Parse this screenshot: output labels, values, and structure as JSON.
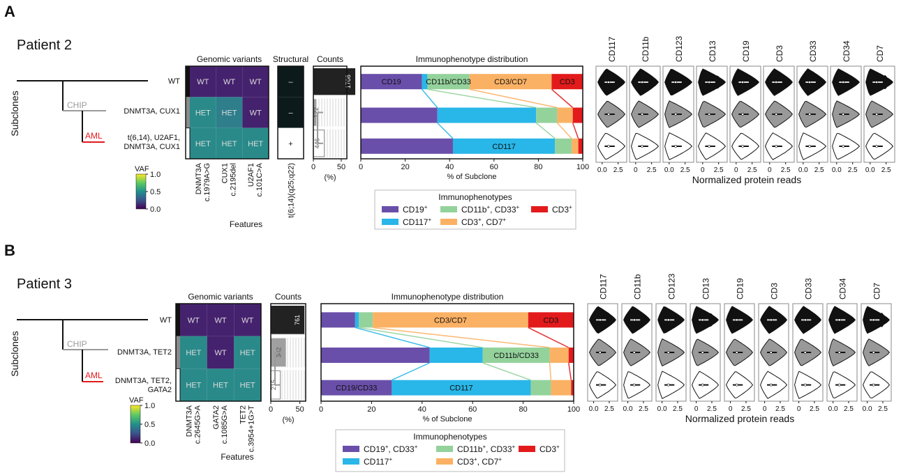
{
  "panels": [
    {
      "letter": "A",
      "patient": "Patient 2",
      "subclones_label": "Subclones",
      "tree": {
        "chip": "CHIP",
        "aml": "AML",
        "chip_color": "#9a9a9a",
        "aml_color": "#e31a1c"
      },
      "rows": [
        "WT",
        "DNMT3A, CUX1",
        "t(6,14), U2AF1,|DNMT3A, CUX1"
      ],
      "genomic": {
        "title": "Genomic variants",
        "columns": [
          "DNMT3A|c.1979A>G",
          "CUX1|c.2195del",
          "U2AF1|c.101C>A"
        ],
        "cells": [
          [
            "WT",
            "WT",
            "WT"
          ],
          [
            "HET",
            "HET",
            "WT"
          ],
          [
            "HET",
            "HET",
            "HET"
          ]
        ],
        "features_label": "Features"
      },
      "structural": {
        "title": "Structural",
        "cells": [
          "–",
          "–",
          "+"
        ],
        "column": "t(6;14)(q25;q22)"
      },
      "counts": {
        "title": "Counts",
        "values": [
          1708,
          122,
          446
        ],
        "ticks": [
          "0",
          "50"
        ],
        "xlabel": "(%)"
      },
      "immuno": {
        "title": "Immunophenotype distribution",
        "xlabel": "% of Subclone",
        "ticks": [
          "0",
          "20",
          "40",
          "60",
          "80",
          "100"
        ],
        "bars": [
          [
            27.5,
            2.5,
            19,
            37,
            14
          ],
          [
            34.5,
            44.5,
            9.5,
            7,
            4.5
          ],
          [
            41.5,
            46,
            7.5,
            3,
            2
          ]
        ],
        "labels": [
          [
            {
              "cat": 0,
              "text": "CD19"
            },
            {
              "cat": 2,
              "text": "CD11b/CD33"
            },
            {
              "cat": 3,
              "text": "CD3/CD7"
            },
            {
              "cat": 4,
              "text": "CD3"
            }
          ],
          [],
          [
            {
              "cat": 1,
              "text": "CD117"
            }
          ]
        ]
      },
      "violins": {
        "groups": [
          [
            "CD117",
            "CD11b"
          ],
          [
            "CD123",
            "CD13",
            "CD19",
            "CD3",
            "CD33",
            "CD34",
            "CD7"
          ]
        ],
        "tick_rows": [
          [
            "0.0",
            "2.5"
          ],
          [
            "0",
            "2.5"
          ],
          [
            "0.0",
            "2.5"
          ],
          [
            "0",
            "2.5"
          ],
          [
            "0",
            "2.5"
          ],
          [
            "0",
            "2.5"
          ],
          [
            "0.0",
            "2.5"
          ],
          [
            "0.0",
            "2.5"
          ],
          [
            "0.0",
            "2.5"
          ]
        ],
        "xlabel": "Normalized protein reads"
      },
      "legend": {
        "title": "Immunophenotypes",
        "items": [
          {
            "color_index": 0,
            "text": "CD19",
            "sup": "+",
            "rest": ""
          },
          {
            "color_index": 2,
            "text": "CD11b",
            "sup": "+",
            "rest": ", CD33+"
          },
          {
            "color_index": 4,
            "text": "CD3",
            "sup": "+",
            "rest": ""
          },
          {
            "color_index": 1,
            "text": "CD117",
            "sup": "+",
            "rest": ""
          },
          {
            "color_index": 3,
            "text": "CD3",
            "sup": "+",
            "rest": ", CD7+"
          }
        ]
      },
      "vaf": {
        "title": "VAF",
        "ticks": [
          "1.0",
          "0.5",
          "0.0"
        ]
      }
    },
    {
      "letter": "B",
      "patient": "Patient 3",
      "subclones_label": "Subclones",
      "tree": {
        "chip": "CHIP",
        "aml": "AML",
        "chip_color": "#9a9a9a",
        "aml_color": "#e31a1c"
      },
      "rows": [
        "WT",
        "DNMT3A, TET2",
        "DNMT3A, TET2,|GATA2"
      ],
      "genomic": {
        "title": "Genomic variants",
        "columns": [
          "DNMT3A|c.2645G>A",
          "GATA2|c.1085G>A",
          "TET2|c.3954+1G>T"
        ],
        "cells": [
          [
            "WT",
            "WT",
            "WT"
          ],
          [
            "HET",
            "WT",
            "HET"
          ],
          [
            "HET",
            "HET",
            "HET"
          ]
        ],
        "features_label": "Features"
      },
      "counts": {
        "title": "Counts",
        "values": [
          761,
          342,
          215
        ],
        "ticks": [
          "0",
          "50"
        ],
        "xlabel": "(%)"
      },
      "immuno": {
        "title": "Immunophenotype distribution",
        "xlabel": "% of Subclone",
        "ticks": [
          "0",
          "20",
          "40",
          "60",
          "80",
          "100"
        ],
        "bars": [
          [
            13.5,
            1.5,
            5.5,
            61.5,
            18
          ],
          [
            43,
            21,
            26.5,
            7.5,
            2
          ],
          [
            28,
            55,
            8,
            8,
            1
          ]
        ],
        "labels": [
          [
            {
              "cat": 3,
              "text": "CD3/CD7"
            },
            {
              "cat": 4,
              "text": "CD3"
            }
          ],
          [
            {
              "cat": 2,
              "text": "CD11b/CD33"
            }
          ],
          [
            {
              "cat": 0,
              "text": "CD19/CD33"
            },
            {
              "cat": 1,
              "text": "CD117"
            }
          ]
        ]
      },
      "violins": {
        "groups": [
          [
            "CD117",
            "CD11b",
            "CD123",
            "CD13",
            "CD19",
            "CD3",
            "CD33",
            "CD34",
            "CD7"
          ]
        ],
        "tick_rows": [
          [
            "0.0",
            "2.5"
          ],
          [
            "0.0",
            "2.5"
          ],
          [
            "0.0",
            "2.5"
          ],
          [
            "0",
            "2.5"
          ],
          [
            "0",
            "2.5"
          ],
          [
            "0",
            "2.5"
          ],
          [
            "0",
            "2.5"
          ],
          [
            "0.0",
            "2.5"
          ],
          [
            "0.0",
            "2.5"
          ]
        ],
        "xlabel": "Normalized protein reads"
      },
      "legend": {
        "title": "Immunophenotypes",
        "items": [
          {
            "color_index": 0,
            "text": "CD19",
            "sup": "+",
            "rest": ", CD33+"
          },
          {
            "color_index": 2,
            "text": "CD11b",
            "sup": "+",
            "rest": ", CD33+"
          },
          {
            "color_index": 4,
            "text": "CD3",
            "sup": "+",
            "rest": ""
          },
          {
            "color_index": 1,
            "text": "CD117",
            "sup": "+",
            "rest": ""
          },
          {
            "color_index": 3,
            "text": "CD3",
            "sup": "+",
            "rest": ", CD7+"
          }
        ]
      },
      "vaf": {
        "title": "VAF",
        "ticks": [
          "1.0",
          "0.5",
          "0.0"
        ]
      }
    }
  ],
  "colors": {
    "categories": [
      "#6a4faa",
      "#29b6e8",
      "#94d29c",
      "#fbb164",
      "#e31a1c"
    ],
    "wt": "#45226e",
    "het": "#2a8a8a",
    "het_alt": "#2e7e8c",
    "viridis": [
      "#fde725",
      "#5ec962",
      "#21918c",
      "#3b528b",
      "#440154"
    ],
    "count_bars": [
      "#222222",
      "#a0a0a0",
      "#ffffff"
    ]
  }
}
